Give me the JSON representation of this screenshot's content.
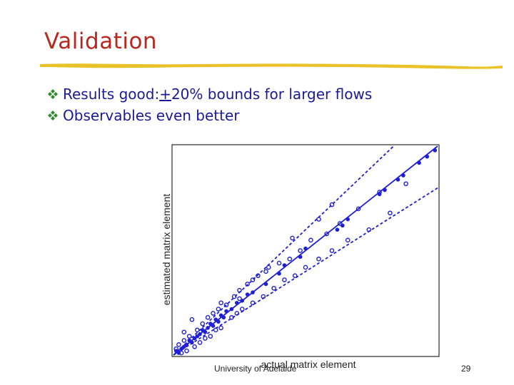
{
  "slide": {
    "title": "Validation",
    "bullets": [
      {
        "pre": "Results good: ",
        "underlined": "+",
        "post": "20% bounds for larger flows"
      },
      {
        "pre": "Observables even better",
        "underlined": "",
        "post": ""
      }
    ],
    "footer": "University of Adelaide",
    "page_number": "29"
  },
  "colors": {
    "title": "#b8281f",
    "bullet_text": "#1a1a99",
    "bullet_icon": "#2e8b2e",
    "rule": "#e9c22a",
    "series": "#1f1fd6"
  },
  "icons": {
    "bullet": "diamond-bullet-icon"
  },
  "chart_data": {
    "type": "scatter",
    "xlabel": "actual matrix element",
    "ylabel": "estimated matrix element",
    "xlim": [
      0,
      100
    ],
    "ylim": [
      0,
      100
    ],
    "grid": false,
    "ticks": false,
    "lines": [
      {
        "style": "solid",
        "slope": 1.0
      },
      {
        "style": "dashed",
        "slope": 1.2
      },
      {
        "style": "dashed",
        "slope": 0.8
      }
    ],
    "series": [
      {
        "marker": "filled",
        "points": [
          [
            1,
            2
          ],
          [
            2,
            1
          ],
          [
            3,
            3
          ],
          [
            4,
            4
          ],
          [
            5,
            5
          ],
          [
            6,
            7
          ],
          [
            7,
            6
          ],
          [
            8,
            8
          ],
          [
            9,
            9
          ],
          [
            10,
            10
          ],
          [
            11,
            12
          ],
          [
            12,
            11
          ],
          [
            13,
            13
          ],
          [
            14,
            15
          ],
          [
            15,
            14
          ],
          [
            16,
            17
          ],
          [
            17,
            16
          ],
          [
            18,
            19
          ],
          [
            19,
            18
          ],
          [
            20,
            21
          ],
          [
            22,
            22
          ],
          [
            24,
            25
          ],
          [
            26,
            26
          ],
          [
            28,
            29
          ],
          [
            30,
            30
          ],
          [
            35,
            34
          ],
          [
            40,
            39
          ],
          [
            42,
            43
          ],
          [
            48,
            47
          ],
          [
            50,
            51
          ],
          [
            62,
            60
          ],
          [
            64,
            62
          ],
          [
            66,
            65
          ],
          [
            78,
            77
          ],
          [
            80,
            79
          ],
          [
            85,
            84
          ],
          [
            87,
            86
          ],
          [
            93,
            92
          ],
          [
            96,
            95
          ],
          [
            99,
            98
          ]
        ]
      },
      {
        "marker": "open",
        "points": [
          [
            1,
            3
          ],
          [
            2,
            5
          ],
          [
            3,
            1
          ],
          [
            5,
            2
          ],
          [
            4,
            7
          ],
          [
            6,
            9
          ],
          [
            8,
            4
          ],
          [
            9,
            12
          ],
          [
            10,
            6
          ],
          [
            11,
            15
          ],
          [
            12,
            8
          ],
          [
            13,
            18
          ],
          [
            14,
            9
          ],
          [
            15,
            20
          ],
          [
            16,
            12
          ],
          [
            17,
            22
          ],
          [
            18,
            13
          ],
          [
            20,
            24
          ],
          [
            22,
            18
          ],
          [
            23,
            28
          ],
          [
            24,
            20
          ],
          [
            25,
            27
          ],
          [
            26,
            22
          ],
          [
            28,
            34
          ],
          [
            30,
            25
          ],
          [
            32,
            38
          ],
          [
            34,
            28
          ],
          [
            36,
            42
          ],
          [
            38,
            32
          ],
          [
            40,
            44
          ],
          [
            42,
            36
          ],
          [
            44,
            46
          ],
          [
            46,
            38
          ],
          [
            48,
            50
          ],
          [
            50,
            42
          ],
          [
            52,
            55
          ],
          [
            55,
            46
          ],
          [
            58,
            58
          ],
          [
            60,
            50
          ],
          [
            63,
            63
          ],
          [
            66,
            55
          ],
          [
            70,
            70
          ],
          [
            74,
            60
          ],
          [
            78,
            78
          ],
          [
            82,
            68
          ],
          [
            55,
            65
          ],
          [
            45,
            56
          ],
          [
            35,
            40
          ],
          [
            25,
            31
          ],
          [
            18,
            25
          ],
          [
            4,
            11
          ],
          [
            7,
            17
          ],
          [
            30,
            36
          ],
          [
            60,
            72
          ],
          [
            88,
            82
          ]
        ]
      }
    ]
  }
}
